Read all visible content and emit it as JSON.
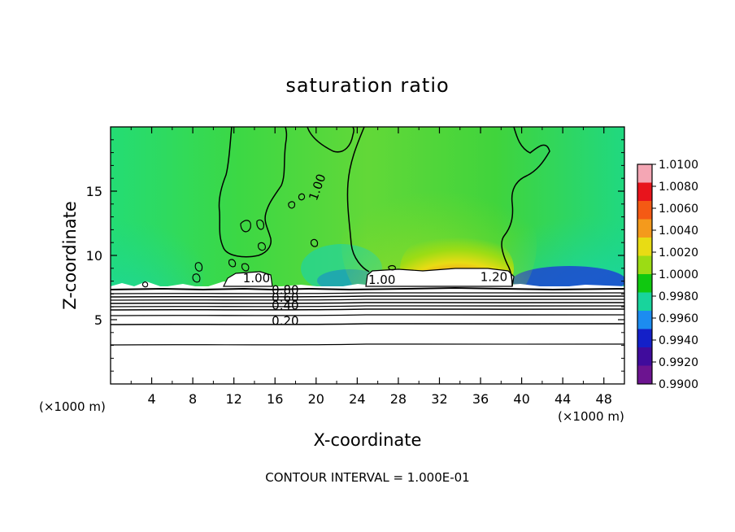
{
  "chart_data": {
    "type": "heatmap",
    "title": "saturation ratio",
    "xlabel": "X-coordinate",
    "ylabel": "Z-coordinate",
    "x_units": "(×1000 m)",
    "x_units_right": "(×1000 m)",
    "xlim": [
      0,
      50
    ],
    "ylim": [
      0,
      20
    ],
    "x_ticks": [
      4,
      8,
      12,
      16,
      20,
      24,
      28,
      32,
      36,
      40,
      44,
      48
    ],
    "y_ticks": [
      5,
      10,
      15
    ],
    "footer": "CONTOUR INTERVAL = 1.000E-01",
    "colorbar": {
      "ticks": [
        "1.0100",
        "1.0080",
        "1.0060",
        "1.0040",
        "1.0020",
        "1.0000",
        "0.9980",
        "0.9960",
        "0.9940",
        "0.9920",
        "0.9900"
      ],
      "colors": [
        "#f4a6b4",
        "#e8141c",
        "#f45a14",
        "#f49a1c",
        "#e8dc14",
        "#9cdc14",
        "#10c810",
        "#18d49c",
        "#1c8cf0",
        "#1420c8",
        "#400c9c",
        "#6c1490"
      ]
    },
    "contour_labels": [
      {
        "text": "1.00",
        "x": 20.5,
        "z": 15.2
      },
      {
        "text": "1.00",
        "x": 14.2,
        "z": 7.9
      },
      {
        "text": "0.80",
        "x": 17.0,
        "z": 7.0
      },
      {
        "text": "0.60",
        "x": 17.0,
        "z": 6.4
      },
      {
        "text": "0.40",
        "x": 17.0,
        "z": 5.8
      },
      {
        "text": "0.20",
        "x": 17.0,
        "z": 4.6
      },
      {
        "text": "1.00",
        "x": 26.4,
        "z": 7.8
      },
      {
        "text": "1.20",
        "x": 37.3,
        "z": 8.0
      }
    ]
  }
}
